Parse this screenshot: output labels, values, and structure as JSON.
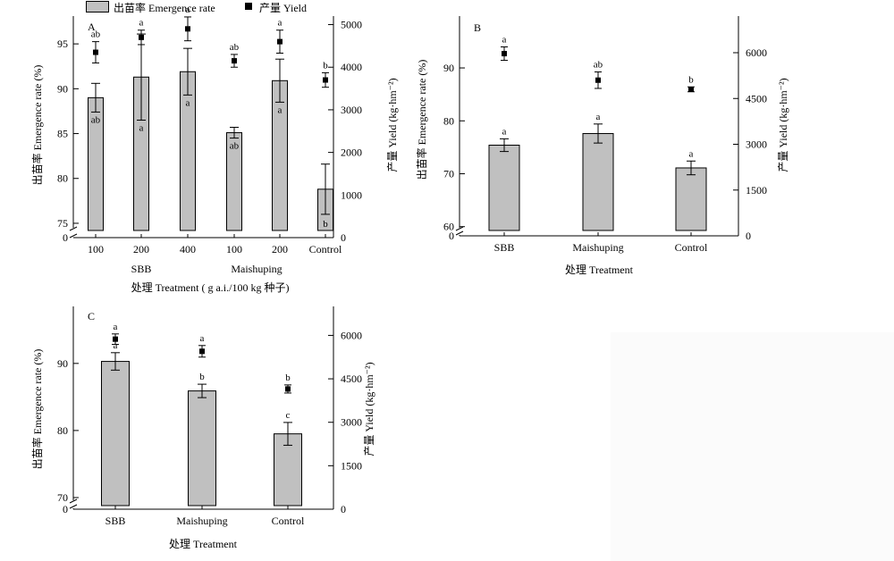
{
  "legend": {
    "emergence_label": "出苗率 Emergence rate",
    "yield_label": "产量 Yield"
  },
  "chart_data": [
    {
      "panel": "A",
      "type": "bar",
      "categories": [
        "100",
        "200",
        "400",
        "100",
        "200",
        "Control"
      ],
      "groups": [
        {
          "label": "SBB",
          "categories": [
            "100",
            "200",
            "400"
          ]
        },
        {
          "label": "Maishuping",
          "categories": [
            "100",
            "200"
          ]
        }
      ],
      "xlabel": "处理 Treatment ( g a.i./100 kg 种子)",
      "ylabel": "出苗率 Emergence rate (%)",
      "y2label": "产量 Yield (kg·hm⁻²)",
      "ylim": [
        73.8,
        98.1
      ],
      "y_ticks": [
        75,
        80,
        85,
        90,
        95
      ],
      "y_break_tick": 0,
      "y2lim": [
        0,
        5200
      ],
      "y2_ticks": [
        0,
        1000,
        2000,
        3000,
        4000,
        5000
      ],
      "series": [
        {
          "name": "出苗率 Emergence rate",
          "kind": "bar",
          "values": [
            89.0,
            91.3,
            91.9,
            85.1,
            90.9,
            78.8
          ],
          "errors": [
            1.6,
            4.8,
            2.6,
            0.6,
            2.4,
            2.8
          ],
          "letters": [
            "ab",
            "a",
            "a",
            "ab",
            "a",
            "b"
          ]
        },
        {
          "name": "产量 Yield",
          "kind": "point",
          "values": [
            4350,
            4700,
            4900,
            4150,
            4600,
            3700
          ],
          "errors": [
            250,
            170,
            280,
            150,
            270,
            170
          ],
          "letters": [
            "ab",
            "a",
            "a",
            "ab",
            "a",
            "b"
          ]
        }
      ]
    },
    {
      "panel": "B",
      "type": "bar",
      "categories": [
        "SBB",
        "Maishuping",
        "Control"
      ],
      "xlabel": "处理 Treatment",
      "ylabel": "出苗率 Emergence rate (%)",
      "y2label": "产量 Yield (kg·hm⁻²)",
      "ylim": [
        58.6,
        99.8
      ],
      "y_ticks": [
        60,
        70,
        80,
        90
      ],
      "y_break_tick": 0,
      "y2lim": [
        0,
        7200
      ],
      "y2_ticks": [
        0,
        1500,
        3000,
        4500,
        6000
      ],
      "series": [
        {
          "name": "出苗率 Emergence rate",
          "kind": "bar",
          "values": [
            75.4,
            77.6,
            71.1
          ],
          "errors": [
            1.2,
            1.8,
            1.3
          ],
          "letters": [
            "a",
            "a",
            "a"
          ]
        },
        {
          "name": "产量 Yield",
          "kind": "point",
          "values": [
            5970,
            5100,
            4800
          ],
          "errors": [
            220,
            270,
            80
          ],
          "letters": [
            "a",
            "ab",
            "b"
          ]
        }
      ]
    },
    {
      "panel": "C",
      "type": "bar",
      "categories": [
        "SBB",
        "Maishuping",
        "Control"
      ],
      "xlabel": "处理 Treatment",
      "ylabel": "出苗率 Emergence rate (%)",
      "y2label": "产量 Yield (kg·hm⁻²)",
      "ylim": [
        68.8,
        98.5
      ],
      "y_ticks": [
        70,
        80,
        90
      ],
      "y_break_tick": 0,
      "y2lim": [
        0,
        7000
      ],
      "y2_ticks": [
        0,
        1500,
        3000,
        4500,
        6000
      ],
      "series": [
        {
          "name": "出苗率 Emergence rate",
          "kind": "bar",
          "values": [
            90.3,
            85.9,
            79.5
          ],
          "errors": [
            1.3,
            1.0,
            1.7
          ],
          "letters": [
            "a",
            "b",
            "c"
          ]
        },
        {
          "name": "产量 Yield",
          "kind": "point",
          "values": [
            5870,
            5450,
            4150
          ],
          "errors": [
            180,
            200,
            140
          ],
          "letters": [
            "a",
            "a",
            "b"
          ]
        }
      ]
    }
  ]
}
